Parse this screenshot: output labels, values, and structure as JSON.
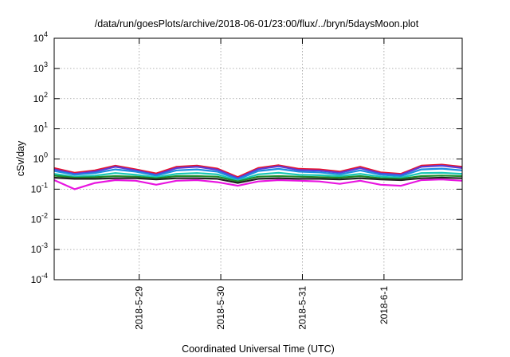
{
  "chart_data": {
    "type": "line",
    "title": "/data/run/goesPlots/archive/2018-06-01/23:00/flux/../bryn/5daysMoon.plot",
    "xlabel": "Coordinated Universal Time (UTC)",
    "ylabel": "cSv/day",
    "yscale": "log",
    "ylim": [
      0.0001,
      10000
    ],
    "xlim": [
      "2018-05-27 23:00",
      "2018-06-01 23:00"
    ],
    "grid": true,
    "legend": "none",
    "y_ticks": [
      {
        "value": 0.0001,
        "base": "10",
        "exp": "-4"
      },
      {
        "value": 0.001,
        "base": "10",
        "exp": "-3"
      },
      {
        "value": 0.01,
        "base": "10",
        "exp": "-2"
      },
      {
        "value": 0.1,
        "base": "10",
        "exp": "-1"
      },
      {
        "value": 1,
        "base": "10",
        "exp": "0"
      },
      {
        "value": 10,
        "base": "10",
        "exp": "1"
      },
      {
        "value": 100,
        "base": "10",
        "exp": "2"
      },
      {
        "value": 1000,
        "base": "10",
        "exp": "3"
      },
      {
        "value": 10000,
        "base": "10",
        "exp": "4"
      }
    ],
    "x_ticks": [
      {
        "label": "2018-5-29",
        "t": "2018-05-29 00:00"
      },
      {
        "label": "2018-5-30",
        "t": "2018-05-30 00:00"
      },
      {
        "label": "2018-5-31",
        "t": "2018-05-31 00:00"
      },
      {
        "label": "2018-6-1",
        "t": "2018-06-01 00:00"
      }
    ],
    "x": [
      "2018-05-27 23:00",
      "2018-05-28 05:00",
      "2018-05-28 11:00",
      "2018-05-28 17:00",
      "2018-05-28 23:00",
      "2018-05-29 05:00",
      "2018-05-29 11:00",
      "2018-05-29 17:00",
      "2018-05-29 23:00",
      "2018-05-30 05:00",
      "2018-05-30 11:00",
      "2018-05-30 17:00",
      "2018-05-30 23:00",
      "2018-05-31 05:00",
      "2018-05-31 11:00",
      "2018-05-31 17:00",
      "2018-05-31 23:00",
      "2018-06-01 05:00",
      "2018-06-01 11:00",
      "2018-06-01 17:00",
      "2018-06-01 23:00"
    ],
    "series": [
      {
        "color": "#e8112d",
        "values": [
          0.5,
          0.35,
          0.42,
          0.6,
          0.45,
          0.33,
          0.55,
          0.6,
          0.48,
          0.25,
          0.5,
          0.62,
          0.47,
          0.45,
          0.38,
          0.55,
          0.36,
          0.32,
          0.6,
          0.65,
          0.55
        ]
      },
      {
        "color": "#5a3dd8",
        "values": [
          0.45,
          0.32,
          0.38,
          0.55,
          0.42,
          0.3,
          0.5,
          0.55,
          0.44,
          0.23,
          0.46,
          0.57,
          0.43,
          0.41,
          0.35,
          0.5,
          0.33,
          0.3,
          0.55,
          0.6,
          0.5
        ]
      },
      {
        "color": "#1e8be0",
        "values": [
          0.4,
          0.3,
          0.34,
          0.45,
          0.38,
          0.28,
          0.42,
          0.45,
          0.38,
          0.21,
          0.4,
          0.47,
          0.38,
          0.36,
          0.31,
          0.42,
          0.3,
          0.27,
          0.45,
          0.48,
          0.42
        ]
      },
      {
        "color": "#18c7b4",
        "values": [
          0.32,
          0.26,
          0.28,
          0.34,
          0.3,
          0.25,
          0.32,
          0.34,
          0.31,
          0.19,
          0.31,
          0.35,
          0.3,
          0.29,
          0.27,
          0.32,
          0.26,
          0.24,
          0.34,
          0.35,
          0.32
        ]
      },
      {
        "color": "#1f8a2a",
        "values": [
          0.28,
          0.24,
          0.25,
          0.27,
          0.26,
          0.23,
          0.27,
          0.27,
          0.26,
          0.18,
          0.26,
          0.27,
          0.26,
          0.25,
          0.24,
          0.27,
          0.23,
          0.22,
          0.27,
          0.28,
          0.27
        ]
      },
      {
        "color": "#222222",
        "values": [
          0.24,
          0.22,
          0.22,
          0.23,
          0.23,
          0.21,
          0.23,
          0.23,
          0.22,
          0.16,
          0.22,
          0.23,
          0.22,
          0.22,
          0.21,
          0.23,
          0.21,
          0.2,
          0.23,
          0.24,
          0.23
        ]
      },
      {
        "color": "#e815e0",
        "values": [
          0.2,
          0.1,
          0.16,
          0.2,
          0.19,
          0.14,
          0.19,
          0.2,
          0.17,
          0.13,
          0.18,
          0.2,
          0.19,
          0.18,
          0.15,
          0.19,
          0.14,
          0.13,
          0.2,
          0.21,
          0.19
        ]
      }
    ]
  }
}
